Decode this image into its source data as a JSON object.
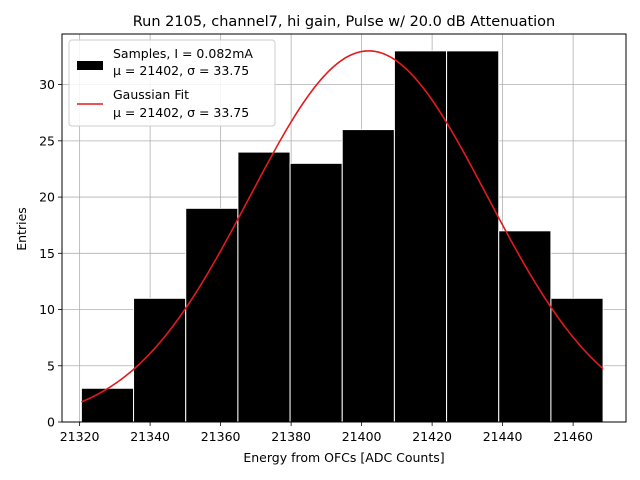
{
  "chart_data": {
    "type": "bar",
    "title": "Run 2105, channel7, hi gain, Pulse w/ 20.0 dB Attenuation",
    "xlabel": "Energy from OFCs [ADC Counts]",
    "ylabel": "Entries",
    "xlim": [
      21315,
      21475
    ],
    "ylim": [
      0,
      34.5
    ],
    "xticks": [
      21320,
      21340,
      21360,
      21380,
      21400,
      21420,
      21440,
      21460
    ],
    "yticks": [
      0,
      5,
      10,
      15,
      20,
      25,
      30
    ],
    "grid": true,
    "legend_position": "top-left",
    "bin_edges": [
      21320.5,
      21335.3,
      21350.1,
      21364.9,
      21379.7,
      21394.5,
      21409.3,
      21424.1,
      21438.9,
      21453.7,
      21468.5
    ],
    "series": [
      {
        "name": "Samples, I = 0.082mA",
        "name_line2": "μ = 21402, σ = 33.75",
        "kind": "histogram",
        "color": "#000000",
        "values": [
          3,
          11,
          19,
          24,
          23,
          26,
          33,
          33,
          17,
          11
        ]
      },
      {
        "name": "Gaussian Fit",
        "name_line2": "μ = 21402, σ = 33.75",
        "kind": "line",
        "color": "#e31a1c",
        "amplitude": 33,
        "mean": 21402,
        "sigma": 33.75,
        "x_range": [
          21320.5,
          21468.5
        ]
      }
    ]
  }
}
